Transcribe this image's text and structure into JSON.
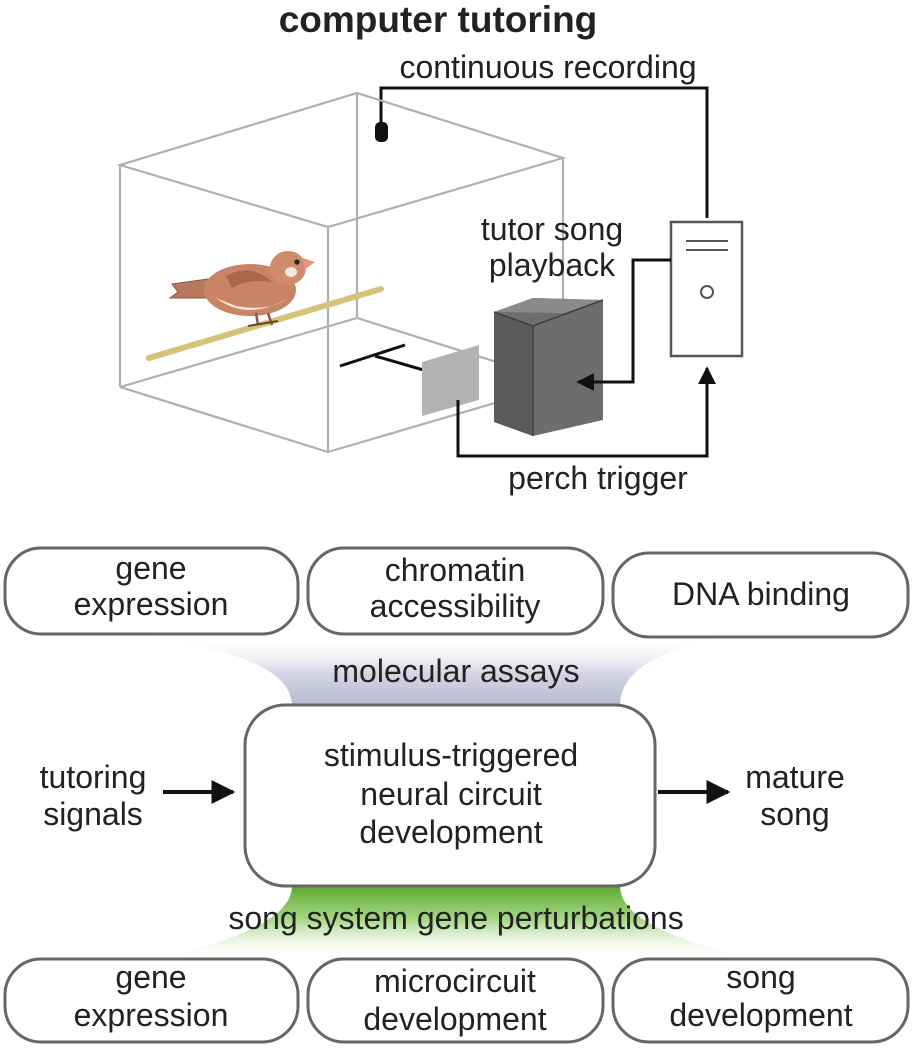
{
  "top": {
    "title": "computer tutoring",
    "continuous_recording": "continuous recording",
    "tutor_song_line1": "tutor song",
    "tutor_song_line2": "playback",
    "perch_trigger": "perch trigger"
  },
  "molecular": {
    "boxes": [
      {
        "line1": "gene",
        "line2": "expression"
      },
      {
        "line1": "chromatin",
        "line2": "accessibility"
      },
      {
        "line1": "DNA binding",
        "line2": ""
      }
    ],
    "label": "molecular assays"
  },
  "center": {
    "line1": "stimulus-triggered",
    "line2": "neural circuit",
    "line3": "development"
  },
  "left_input": {
    "line1": "tutoring",
    "line2": "signals"
  },
  "right_output": {
    "line1": "mature",
    "line2": "song"
  },
  "perturbation": {
    "label": "song system gene perturbations",
    "boxes": [
      {
        "line1": "gene",
        "line2": "expression"
      },
      {
        "line1": "microcircuit",
        "line2": "development"
      },
      {
        "line1": "song",
        "line2": "development"
      }
    ]
  },
  "colors": {
    "molecular_band": "#c8c8dc",
    "perturbation_band": "#6cb83e",
    "speaker": "#6d6d6d",
    "bird_body": "#c98466",
    "perch": "#d4c47a"
  }
}
